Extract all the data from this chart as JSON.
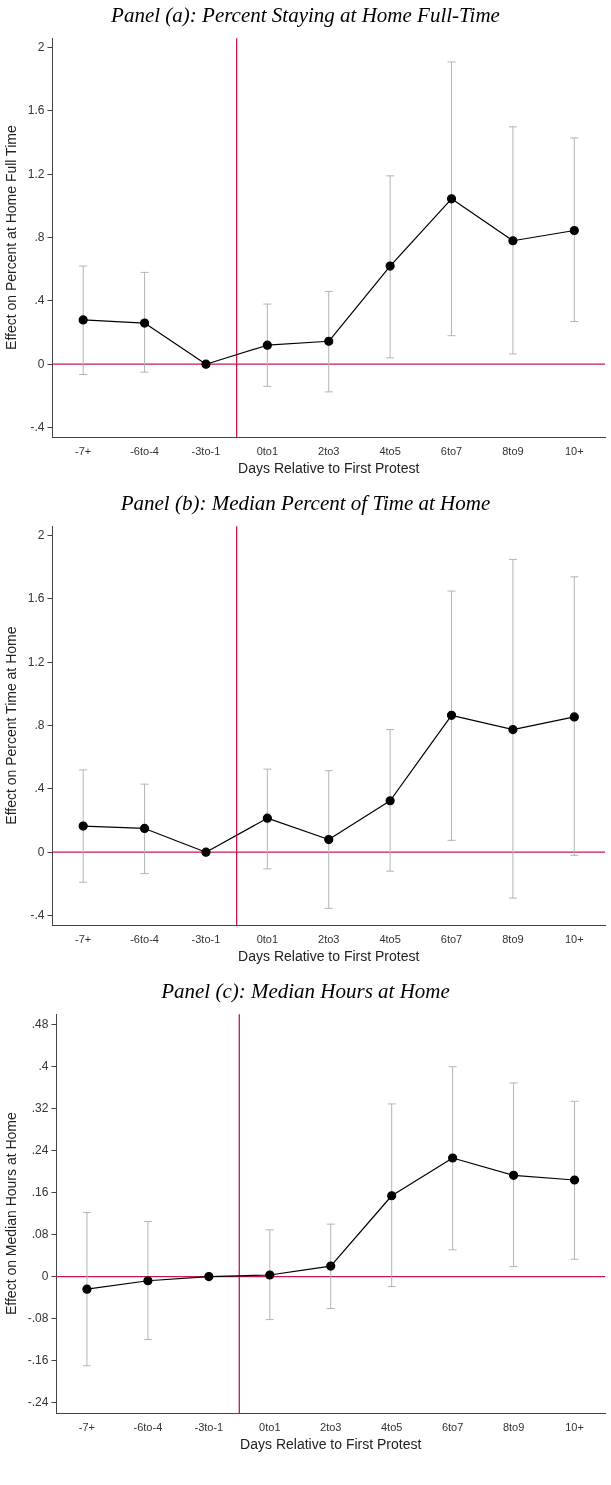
{
  "chart_data": [
    {
      "type": "line",
      "title": "Panel (a): Percent Staying at Home Full-Time",
      "xlabel": "Days Relative to First Protest",
      "ylabel": "Effect on Percent at Home Full Time",
      "categories": [
        "-7+",
        "-6to-4",
        "-3to-1",
        "0to1",
        "2to3",
        "4to5",
        "6to7",
        "8to9",
        "10+"
      ],
      "series": [
        {
          "color": "#000000",
          "values": [
            0.28,
            0.26,
            0,
            0.12,
            0.145,
            0.62,
            1.045,
            0.78,
            0.845
          ],
          "errors": [
            [
              -0.065,
              0.62
            ],
            [
              -0.05,
              0.58
            ],
            null,
            [
              -0.14,
              0.38
            ],
            [
              -0.175,
              0.46
            ],
            [
              0.04,
              1.19
            ],
            [
              0.18,
              1.91
            ],
            [
              0.065,
              1.5
            ],
            [
              0.27,
              1.43
            ]
          ]
        }
      ],
      "ylim": [
        -0.46,
        2.06
      ],
      "yticks": [
        {
          "value": -0.4,
          "label": "-.4"
        },
        0,
        {
          "value": 0.4,
          "label": ".4"
        },
        {
          "value": 0.8,
          "label": ".8"
        },
        1.2,
        1.6,
        2
      ],
      "ref_lines": [
        {
          "axis": "y",
          "value": 0,
          "color": "#c8194b"
        }
      ],
      "marker": "circle",
      "line_style": "solid",
      "grid": false,
      "legend": false
    },
    {
      "type": "line",
      "title": "Panel (b): Median Percent of Time at Home",
      "xlabel": "Days Relative to First Protest",
      "ylabel": "Effect on Percent Time at Home",
      "categories": [
        "-7+",
        "-6to-4",
        "-3to-1",
        "0to1",
        "2to3",
        "4to5",
        "6to7",
        "8to9",
        "10+"
      ],
      "series": [
        {
          "color": "#000000",
          "values": [
            0.165,
            0.15,
            0,
            0.215,
            0.08,
            0.325,
            0.865,
            0.775,
            0.855
          ],
          "errors": [
            [
              -0.19,
              0.52
            ],
            [
              -0.135,
              0.43
            ],
            null,
            [
              -0.105,
              0.525
            ],
            [
              -0.355,
              0.515
            ],
            [
              -0.12,
              0.775
            ],
            [
              0.075,
              1.65
            ],
            [
              -0.29,
              1.85
            ],
            [
              -0.02,
              1.74
            ]
          ]
        }
      ],
      "ylim": [
        -0.46,
        2.06
      ],
      "yticks": [
        {
          "value": -0.4,
          "label": "-.4"
        },
        0,
        {
          "value": 0.4,
          "label": ".4"
        },
        {
          "value": 0.8,
          "label": ".8"
        },
        1.2,
        1.6,
        2
      ],
      "ref_lines": [
        {
          "axis": "y",
          "value": 0,
          "color": "#c8194b"
        }
      ],
      "marker": "circle",
      "line_style": "solid",
      "grid": false,
      "legend": false
    },
    {
      "type": "line",
      "title": "Panel (c): Median Hours at Home",
      "xlabel": "Days Relative to First Protest",
      "ylabel": "Effect on Median Hours at Home",
      "categories": [
        "-7+",
        "-6to-4",
        "-3to-1",
        "0to1",
        "2to3",
        "4to5",
        "6to7",
        "8to9",
        "10+"
      ],
      "series": [
        {
          "color": "#000000",
          "values": [
            -0.024,
            -0.008,
            0,
            0.003,
            0.02,
            0.154,
            0.226,
            0.193,
            0.184
          ],
          "errors": [
            [
              -0.17,
              0.122
            ],
            [
              -0.12,
              0.105
            ],
            null,
            [
              -0.082,
              0.089
            ],
            [
              -0.061,
              0.1
            ],
            [
              -0.019,
              0.329
            ],
            [
              0.051,
              0.4
            ],
            [
              0.019,
              0.369
            ],
            [
              0.033,
              0.334
            ]
          ]
        }
      ],
      "ylim": [
        -0.26,
        0.5
      ],
      "yticks": [
        {
          "value": -0.24,
          "label": "-.24"
        },
        {
          "value": -0.16,
          "label": "-.16"
        },
        {
          "value": -0.08,
          "label": "-.08"
        },
        0,
        {
          "value": 0.08,
          "label": ".08"
        },
        {
          "value": 0.16,
          "label": ".16"
        },
        {
          "value": 0.24,
          "label": ".24"
        },
        {
          "value": 0.32,
          "label": ".32"
        },
        {
          "value": 0.4,
          "label": ".4"
        },
        {
          "value": 0.48,
          "label": ".48"
        }
      ],
      "ref_lines": [
        {
          "axis": "y",
          "value": 0,
          "color": "#c8194b"
        }
      ],
      "marker": "circle",
      "line_style": "solid",
      "grid": false,
      "legend": false
    }
  ]
}
